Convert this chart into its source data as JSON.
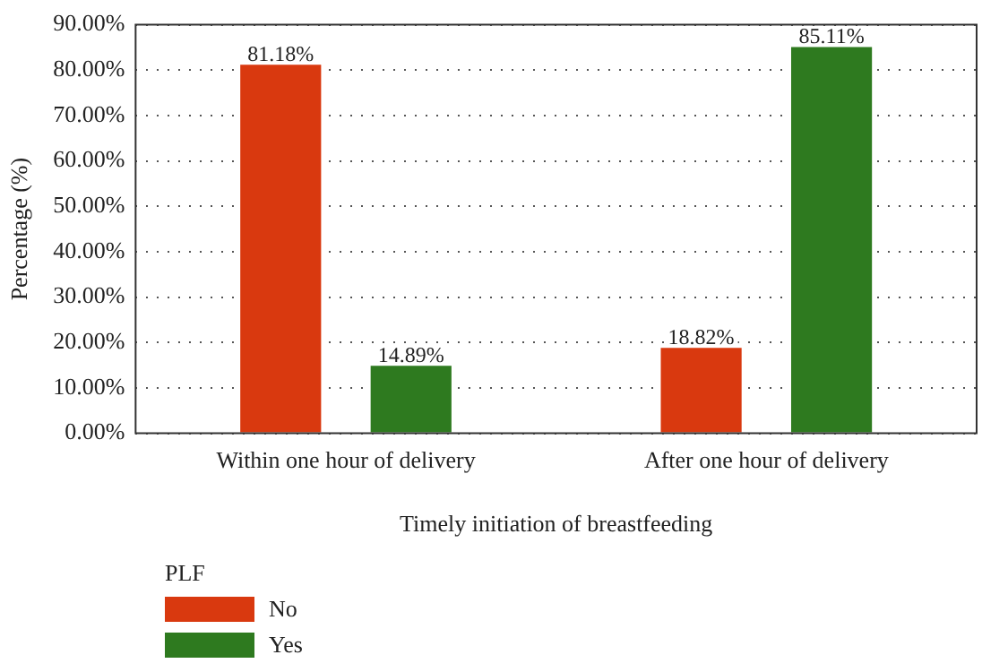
{
  "chart_data": {
    "type": "bar",
    "xlabel": "Timely initiation of breastfeeding",
    "ylabel": "Percentage (%)",
    "legend_title": "PLF",
    "categories": [
      "Within one hour of delivery",
      "After one hour of delivery"
    ],
    "series": [
      {
        "name": "No",
        "color": "#d9390f",
        "values": [
          81.18,
          18.82
        ],
        "value_labels": [
          "81.18%",
          "18.82%"
        ]
      },
      {
        "name": "Yes",
        "color": "#2e7a1f",
        "values": [
          14.89,
          85.11
        ],
        "value_labels": [
          "14.89%",
          "85.11%"
        ]
      }
    ],
    "ylim": [
      0,
      90
    ],
    "yticks": [
      {
        "value": 0,
        "label": "0.00%"
      },
      {
        "value": 10,
        "label": "10.00%"
      },
      {
        "value": 20,
        "label": "20.00%"
      },
      {
        "value": 30,
        "label": "30.00%"
      },
      {
        "value": 40,
        "label": "40.00%"
      },
      {
        "value": 50,
        "label": "50.00%"
      },
      {
        "value": 60,
        "label": "60.00%"
      },
      {
        "value": 70,
        "label": "70.00%"
      },
      {
        "value": 80,
        "label": "80.00%"
      },
      {
        "value": 90,
        "label": "90.00%"
      }
    ],
    "grid": "y",
    "legend": "bottom left"
  }
}
